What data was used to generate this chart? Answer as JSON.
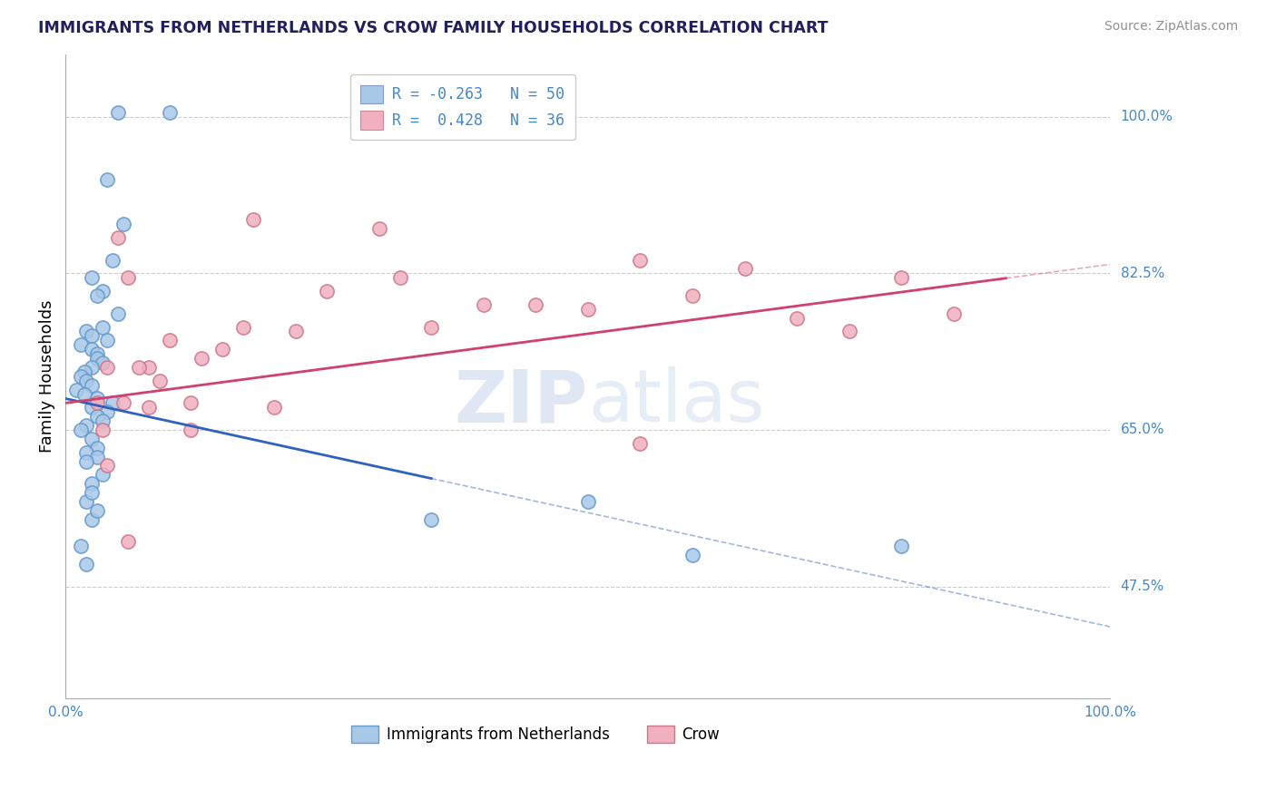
{
  "title": "IMMIGRANTS FROM NETHERLANDS VS CROW FAMILY HOUSEHOLDS CORRELATION CHART",
  "source_text": "Source: ZipAtlas.com",
  "ylabel": "Family Households",
  "x_min": 0.0,
  "x_max": 100.0,
  "y_min": 35.0,
  "y_max": 107.0,
  "y_ticks": [
    47.5,
    65.0,
    82.5,
    100.0
  ],
  "legend_labels_bottom": [
    "Immigrants from Netherlands",
    "Crow"
  ],
  "blue_color": "#a8c8e8",
  "pink_color": "#f0b0c0",
  "blue_line_color": "#3060c0",
  "pink_line_color": "#d04070",
  "background_color": "#ffffff",
  "grid_color": "#cccccc",
  "title_color": "#202060",
  "source_color": "#909090",
  "right_label_color": "#4488cc",
  "scatter_blue": {
    "x": [
      5.0,
      10.0,
      4.0,
      5.5,
      4.5,
      2.5,
      3.5,
      3.0,
      5.0,
      3.5,
      2.0,
      2.5,
      4.0,
      1.5,
      2.5,
      3.0,
      3.0,
      3.5,
      2.5,
      1.8,
      1.5,
      2.0,
      2.5,
      1.0,
      1.8,
      3.0,
      4.5,
      2.5,
      4.0,
      3.0,
      3.5,
      2.0,
      1.5,
      2.5,
      3.0,
      2.0,
      3.0,
      2.0,
      3.5,
      2.5,
      2.0,
      2.5,
      1.5,
      2.0,
      2.5,
      3.0,
      35.0,
      60.0,
      80.0,
      50.0
    ],
    "y": [
      100.5,
      100.5,
      93.0,
      88.0,
      84.0,
      82.0,
      80.5,
      80.0,
      78.0,
      76.5,
      76.0,
      75.5,
      75.0,
      74.5,
      74.0,
      73.5,
      73.0,
      72.5,
      72.0,
      71.5,
      71.0,
      70.5,
      70.0,
      69.5,
      69.0,
      68.5,
      68.0,
      67.5,
      67.0,
      66.5,
      66.0,
      65.5,
      65.0,
      64.0,
      63.0,
      62.5,
      62.0,
      61.5,
      60.0,
      59.0,
      57.0,
      55.0,
      52.0,
      50.0,
      58.0,
      56.0,
      55.0,
      51.0,
      52.0,
      57.0
    ]
  },
  "scatter_pink": {
    "x": [
      3.0,
      5.0,
      8.0,
      6.0,
      4.0,
      9.0,
      12.0,
      15.0,
      20.0,
      18.0,
      25.0,
      30.0,
      35.0,
      40.0,
      50.0,
      55.0,
      60.0,
      65.0,
      70.0,
      75.0,
      80.0,
      85.0,
      3.5,
      5.5,
      7.0,
      10.0,
      13.0,
      17.0,
      6.0,
      8.0,
      12.0,
      22.0,
      32.0,
      45.0,
      55.0,
      4.0
    ],
    "y": [
      68.0,
      86.5,
      72.0,
      82.0,
      72.0,
      70.5,
      68.0,
      74.0,
      67.5,
      88.5,
      80.5,
      87.5,
      76.5,
      79.0,
      78.5,
      84.0,
      80.0,
      83.0,
      77.5,
      76.0,
      82.0,
      78.0,
      65.0,
      68.0,
      72.0,
      75.0,
      73.0,
      76.5,
      52.5,
      67.5,
      65.0,
      76.0,
      82.0,
      79.0,
      63.5,
      61.0
    ]
  },
  "blue_trend_y0": 68.5,
  "blue_trend_y1": 43.0,
  "blue_solid_x1": 35.0,
  "pink_trend_y0": 68.0,
  "pink_trend_y1": 83.5,
  "pink_solid_x1": 90.0
}
